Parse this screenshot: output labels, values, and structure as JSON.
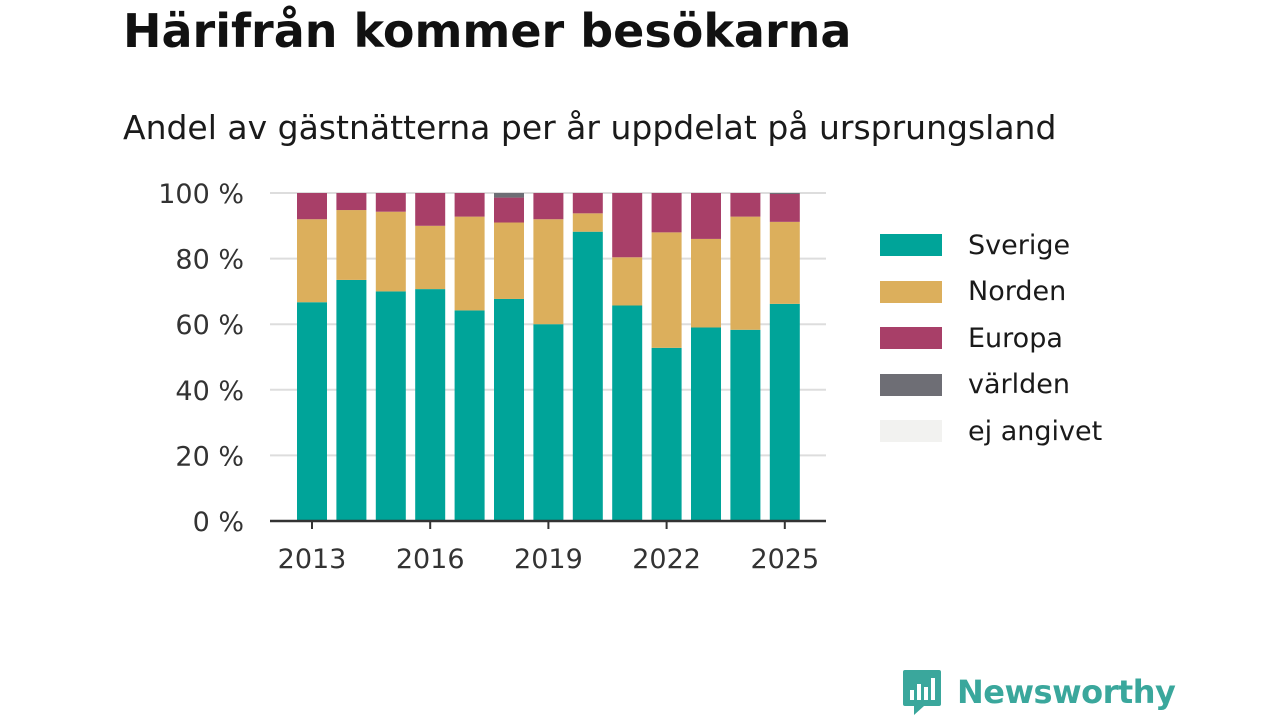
{
  "title": "Härifrån kommer besökarna",
  "subtitle": "Andel av gästnätterna per år uppdelat på ursprungsland",
  "brand": {
    "name": "Newsworthy",
    "icon": "newsworthy-logo-icon",
    "color": "#3aa79c"
  },
  "chart_data": {
    "type": "bar",
    "stacked": true,
    "categories": [
      "2013",
      "2014",
      "2015",
      "2016",
      "2017",
      "2018",
      "2019",
      "2020",
      "2021",
      "2022",
      "2023",
      "2024",
      "2025"
    ],
    "x_tick_labels": [
      "2013",
      "2016",
      "2019",
      "2022",
      "2025"
    ],
    "y_ticks": [
      0,
      20,
      40,
      60,
      80,
      100
    ],
    "y_tick_labels": [
      "0 %",
      "20 %",
      "40 %",
      "60 %",
      "80 %",
      "100 %"
    ],
    "ylim": [
      0,
      100
    ],
    "grid": true,
    "legend_position": "right",
    "series": [
      {
        "name": "Sverige",
        "color": "#00a499",
        "values": [
          66.7,
          73.5,
          70.0,
          70.7,
          64.2,
          67.7,
          60.0,
          88.2,
          65.7,
          52.8,
          59.0,
          58.3,
          66.2
        ]
      },
      {
        "name": "Norden",
        "color": "#dcaf5c",
        "values": [
          25.3,
          21.3,
          24.3,
          19.3,
          28.6,
          23.3,
          32.0,
          5.6,
          14.7,
          35.2,
          27.0,
          34.5,
          25.0
        ]
      },
      {
        "name": "Europa",
        "color": "#a83f68",
        "values": [
          8.0,
          5.2,
          5.7,
          10.0,
          7.2,
          7.6,
          8.0,
          6.2,
          19.6,
          12.0,
          14.0,
          7.2,
          8.5
        ]
      },
      {
        "name": "världen",
        "color": "#6e6e75",
        "values": [
          0,
          0,
          0,
          0,
          0,
          1.4,
          0,
          0,
          0,
          0,
          0,
          0,
          0.3
        ]
      },
      {
        "name": "ej angivet",
        "color": "#f2f2f0",
        "values": [
          0,
          0,
          0,
          0,
          0,
          0,
          0,
          0,
          0,
          0,
          0,
          0,
          0
        ]
      }
    ]
  }
}
